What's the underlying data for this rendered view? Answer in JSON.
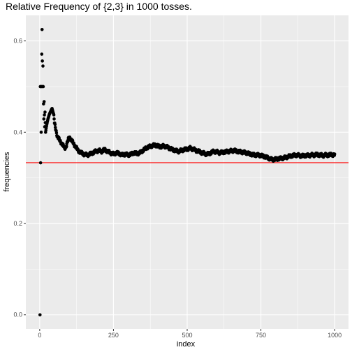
{
  "chart_data": {
    "type": "scatter",
    "title": "Relative Frequency of {2,3} in 1000 tosses.",
    "xlabel": "index",
    "ylabel": "frequencies",
    "xlim": [
      -47,
      1047
    ],
    "ylim": [
      -0.031,
      0.656
    ],
    "x_ticks": [
      0,
      250,
      500,
      750,
      1000
    ],
    "x_tick_labels": [
      "0",
      "250",
      "500",
      "750",
      "1000"
    ],
    "y_ticks": [
      0.0,
      0.2,
      0.4,
      0.6
    ],
    "y_tick_labels": [
      "0.0",
      "0.2",
      "0.4",
      "0.6"
    ],
    "grid": true,
    "reference_line": {
      "y": 0.3333,
      "color": "#ff0000"
    },
    "panel_color": "#ebebeb",
    "point_color": "#000000",
    "trace_keypoints": [
      [
        6,
        0.5
      ],
      [
        7,
        0.571
      ],
      [
        8,
        0.625
      ],
      [
        9,
        0.556
      ],
      [
        10,
        0.5
      ],
      [
        11,
        0.545
      ],
      [
        12,
        0.5
      ],
      [
        13,
        0.462
      ],
      [
        14,
        0.429
      ],
      [
        15,
        0.467
      ],
      [
        16,
        0.438
      ],
      [
        17,
        0.412
      ],
      [
        18,
        0.444
      ],
      [
        19,
        0.421
      ],
      [
        20,
        0.4
      ],
      [
        22,
        0.409
      ],
      [
        24,
        0.417
      ],
      [
        26,
        0.423
      ],
      [
        28,
        0.429
      ],
      [
        30,
        0.433
      ],
      [
        32,
        0.438
      ],
      [
        34,
        0.441
      ],
      [
        36,
        0.444
      ],
      [
        38,
        0.447
      ],
      [
        40,
        0.45
      ],
      [
        42,
        0.452
      ],
      [
        45,
        0.444
      ],
      [
        48,
        0.438
      ],
      [
        50,
        0.42
      ],
      [
        55,
        0.405
      ],
      [
        60,
        0.39
      ],
      [
        65,
        0.385
      ],
      [
        70,
        0.38
      ],
      [
        75,
        0.375
      ],
      [
        80,
        0.37
      ],
      [
        85,
        0.365
      ],
      [
        90,
        0.37
      ],
      [
        95,
        0.38
      ],
      [
        100,
        0.39
      ],
      [
        105,
        0.385
      ],
      [
        110,
        0.38
      ],
      [
        115,
        0.375
      ],
      [
        120,
        0.37
      ],
      [
        130,
        0.36
      ],
      [
        140,
        0.355
      ],
      [
        150,
        0.352
      ],
      [
        160,
        0.35
      ],
      [
        170,
        0.352
      ],
      [
        180,
        0.355
      ],
      [
        190,
        0.358
      ],
      [
        200,
        0.36
      ],
      [
        210,
        0.358
      ],
      [
        220,
        0.362
      ],
      [
        230,
        0.358
      ],
      [
        240,
        0.355
      ],
      [
        250,
        0.352
      ],
      [
        260,
        0.355
      ],
      [
        270,
        0.353
      ],
      [
        280,
        0.35
      ],
      [
        290,
        0.352
      ],
      [
        300,
        0.35
      ],
      [
        310,
        0.352
      ],
      [
        320,
        0.355
      ],
      [
        330,
        0.353
      ],
      [
        340,
        0.355
      ],
      [
        350,
        0.36
      ],
      [
        360,
        0.365
      ],
      [
        370,
        0.368
      ],
      [
        380,
        0.37
      ],
      [
        390,
        0.372
      ],
      [
        400,
        0.37
      ],
      [
        410,
        0.368
      ],
      [
        420,
        0.37
      ],
      [
        430,
        0.368
      ],
      [
        440,
        0.365
      ],
      [
        450,
        0.362
      ],
      [
        460,
        0.36
      ],
      [
        470,
        0.358
      ],
      [
        480,
        0.36
      ],
      [
        490,
        0.362
      ],
      [
        500,
        0.363
      ],
      [
        510,
        0.365
      ],
      [
        520,
        0.363
      ],
      [
        530,
        0.36
      ],
      [
        540,
        0.358
      ],
      [
        550,
        0.355
      ],
      [
        560,
        0.353
      ],
      [
        570,
        0.352
      ],
      [
        580,
        0.355
      ],
      [
        590,
        0.358
      ],
      [
        600,
        0.357
      ],
      [
        610,
        0.355
      ],
      [
        620,
        0.356
      ],
      [
        630,
        0.357
      ],
      [
        640,
        0.358
      ],
      [
        650,
        0.359
      ],
      [
        660,
        0.36
      ],
      [
        670,
        0.358
      ],
      [
        680,
        0.357
      ],
      [
        690,
        0.356
      ],
      [
        700,
        0.355
      ],
      [
        710,
        0.353
      ],
      [
        720,
        0.351
      ],
      [
        730,
        0.35
      ],
      [
        740,
        0.35
      ],
      [
        750,
        0.349
      ],
      [
        760,
        0.347
      ],
      [
        770,
        0.345
      ],
      [
        780,
        0.342
      ],
      [
        790,
        0.34
      ],
      [
        800,
        0.341
      ],
      [
        810,
        0.342
      ],
      [
        820,
        0.343
      ],
      [
        830,
        0.344
      ],
      [
        840,
        0.346
      ],
      [
        850,
        0.348
      ],
      [
        860,
        0.349
      ],
      [
        870,
        0.35
      ],
      [
        880,
        0.349
      ],
      [
        890,
        0.348
      ],
      [
        900,
        0.349
      ],
      [
        910,
        0.349
      ],
      [
        920,
        0.35
      ],
      [
        930,
        0.35
      ],
      [
        940,
        0.351
      ],
      [
        950,
        0.35
      ],
      [
        960,
        0.349
      ],
      [
        970,
        0.35
      ],
      [
        980,
        0.35
      ],
      [
        990,
        0.351
      ],
      [
        1000,
        0.35
      ]
    ],
    "early_points": [
      [
        1,
        0.0
      ],
      [
        2,
        0.5
      ],
      [
        3,
        0.333
      ],
      [
        4,
        0.5
      ],
      [
        5,
        0.4
      ]
    ]
  }
}
